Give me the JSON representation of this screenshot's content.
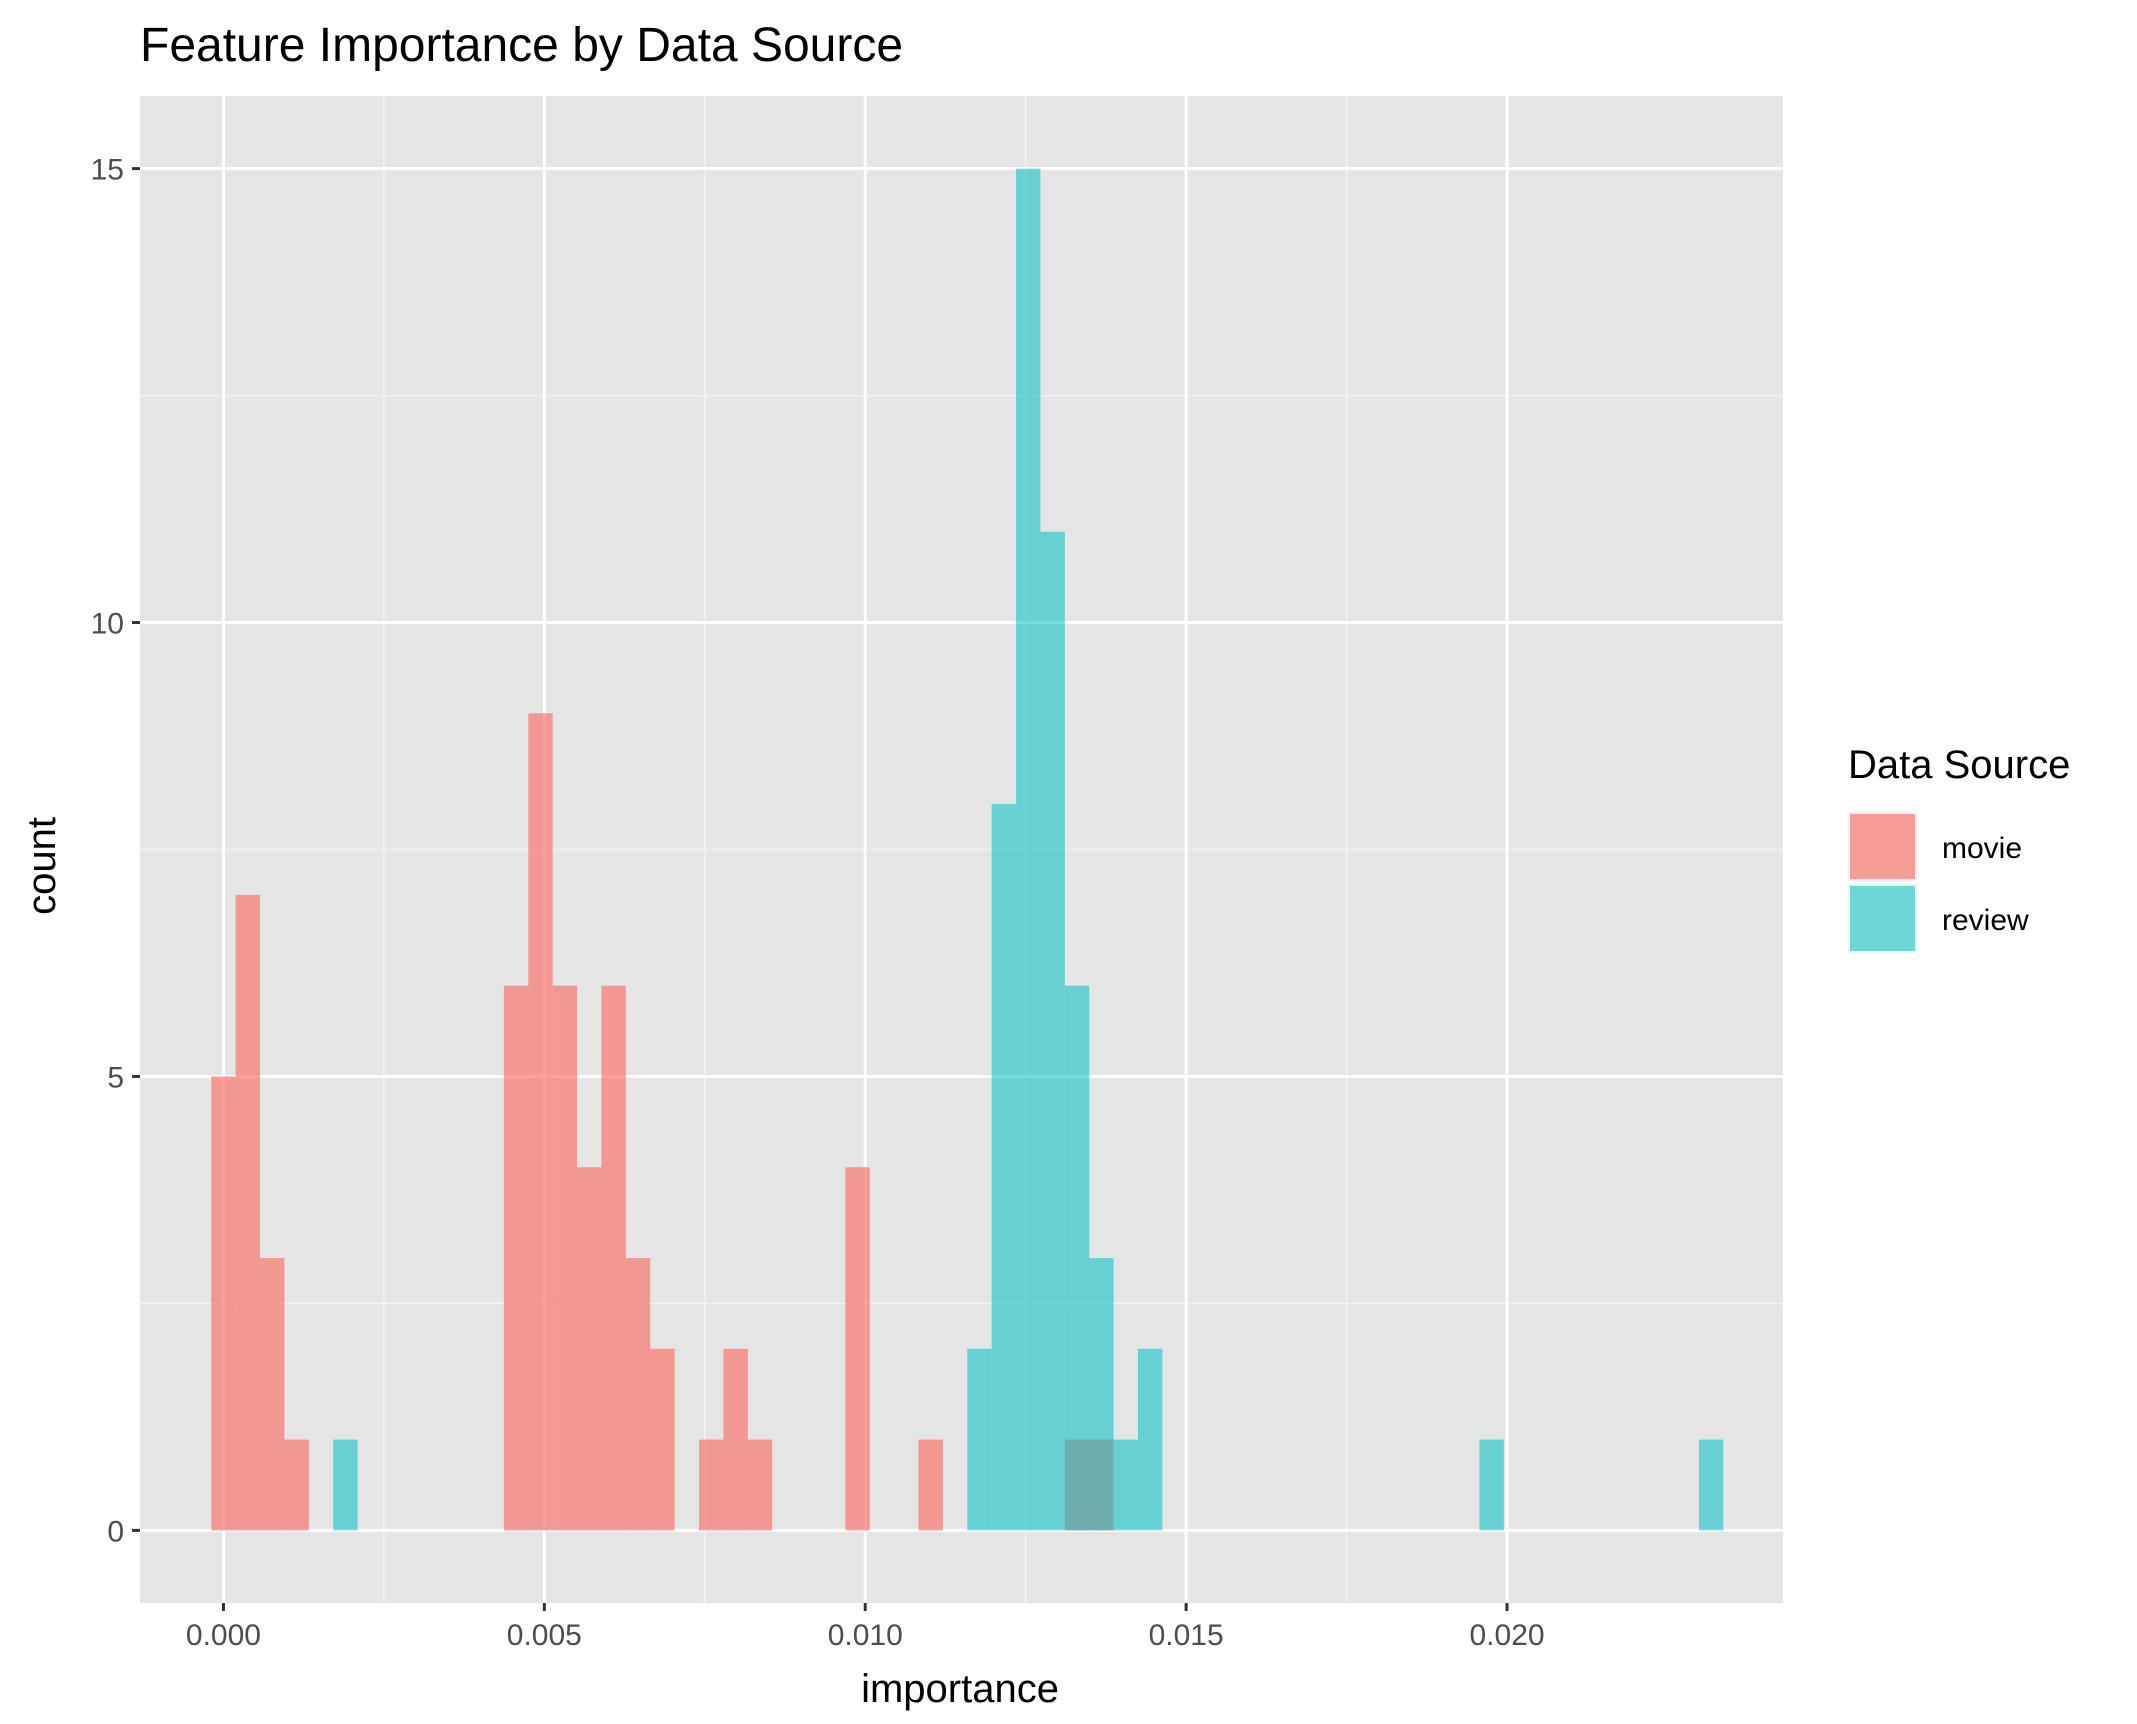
{
  "chart_data": {
    "type": "bar",
    "subtype": "histogram",
    "title": "Feature Importance by Data Source",
    "xlabel": "importance",
    "ylabel": "count",
    "xlim": [
      -0.0013,
      0.0243
    ],
    "ylim": [
      -0.8,
      15.8
    ],
    "x_ticks": [
      0,
      0.005,
      0.01,
      0.015,
      0.02
    ],
    "x_tick_labels": [
      "0.000",
      "0.005",
      "0.010",
      "0.015",
      "0.020"
    ],
    "y_ticks": [
      0,
      5,
      10,
      15
    ],
    "y_tick_labels": [
      "0",
      "5",
      "10",
      "15"
    ],
    "bin_width": 0.00038,
    "grid": true,
    "background": "#e5e5e5",
    "legend": {
      "title": "Data Source",
      "position": "right"
    },
    "series": [
      {
        "name": "movie",
        "color": "#F8766D",
        "opacity": 0.7,
        "bins": [
          {
            "x": 0.0,
            "count": 5
          },
          {
            "x": 0.00038,
            "count": 7
          },
          {
            "x": 0.00076,
            "count": 3
          },
          {
            "x": 0.00114,
            "count": 1
          },
          {
            "x": 0.00456,
            "count": 6
          },
          {
            "x": 0.00494,
            "count": 9
          },
          {
            "x": 0.00532,
            "count": 6
          },
          {
            "x": 0.0057,
            "count": 4
          },
          {
            "x": 0.00608,
            "count": 6
          },
          {
            "x": 0.00646,
            "count": 3
          },
          {
            "x": 0.00684,
            "count": 2
          },
          {
            "x": 0.0076,
            "count": 1
          },
          {
            "x": 0.00798,
            "count": 2
          },
          {
            "x": 0.00836,
            "count": 1
          },
          {
            "x": 0.00988,
            "count": 4
          },
          {
            "x": 0.01102,
            "count": 1
          },
          {
            "x": 0.0133,
            "count": 1
          },
          {
            "x": 0.01368,
            "count": 1
          }
        ]
      },
      {
        "name": "review",
        "color": "#00BFC4",
        "opacity": 0.55,
        "bins": [
          {
            "x": 0.0019,
            "count": 1
          },
          {
            "x": 0.01178,
            "count": 2
          },
          {
            "x": 0.01216,
            "count": 8
          },
          {
            "x": 0.01254,
            "count": 15
          },
          {
            "x": 0.01292,
            "count": 11
          },
          {
            "x": 0.0133,
            "count": 6
          },
          {
            "x": 0.01368,
            "count": 3
          },
          {
            "x": 0.01406,
            "count": 1
          },
          {
            "x": 0.01444,
            "count": 2
          },
          {
            "x": 0.01976,
            "count": 1
          },
          {
            "x": 0.02318,
            "count": 1
          }
        ]
      }
    ]
  }
}
